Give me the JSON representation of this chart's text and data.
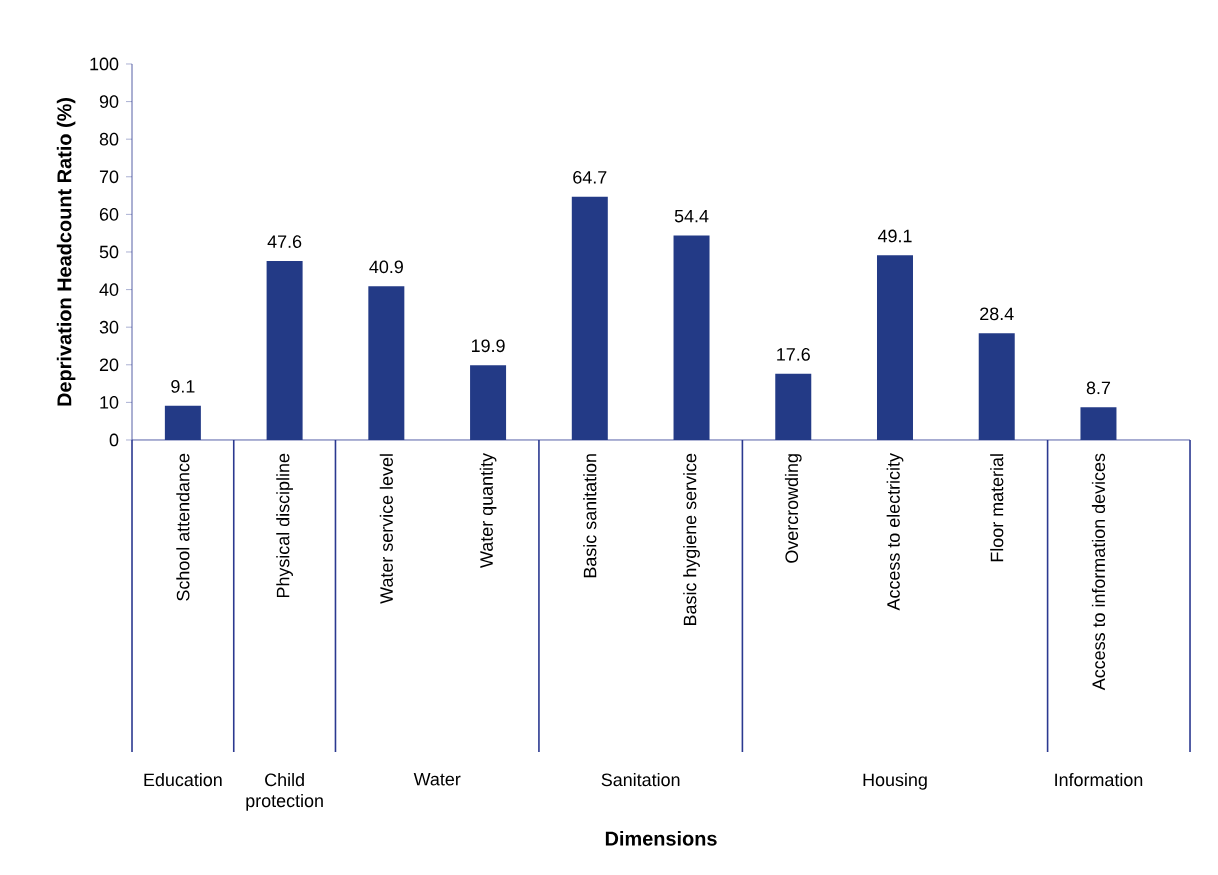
{
  "chart_data": {
    "type": "bar",
    "ylabel": "Deprivation Headcount Ratio (%)",
    "categories": [
      "School attendance",
      "Physical discipline",
      "Water service level",
      "Water quantity",
      "Basic sanitation",
      "Basic hygiene service",
      "Overcrowding",
      "Access to electricity",
      "Floor material",
      "Access to information devices"
    ],
    "values": [
      9.1,
      47.6,
      40.9,
      19.9,
      64.7,
      54.4,
      17.6,
      49.1,
      28.4,
      8.7
    ],
    "color": "#233a86",
    "data_labels": true,
    "grid": false,
    "ylim": [
      0,
      100
    ],
    "yticks": [
      0,
      10,
      20,
      30,
      40,
      50,
      60,
      70,
      80,
      90,
      100
    ],
    "annotations": [
      "Education",
      "Child protection",
      "Water",
      "Sanitation",
      "Housing",
      "Information",
      "Dimensions"
    ]
  }
}
